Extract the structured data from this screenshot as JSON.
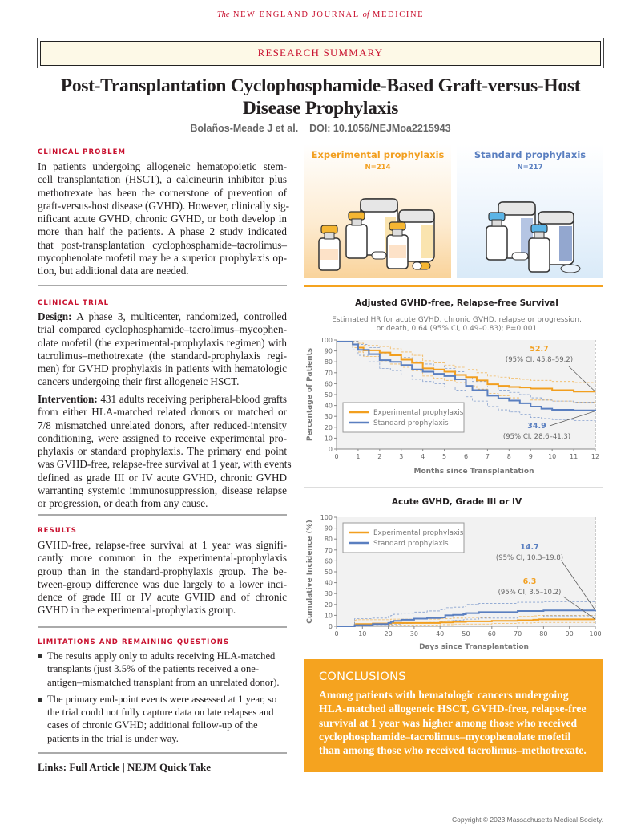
{
  "journal": {
    "prefix": "The",
    "name": "NEW ENGLAND JOURNAL",
    "of": "of",
    "suffix": "MEDICINE"
  },
  "banner": "RESEARCH SUMMARY",
  "title": "Post-Transplantation Cyclophosphamide-Based Graft-versus-Host Disease Prophylaxis",
  "authors": "Bolaños-Meade J et al.",
  "doi": "DOI: 10.1056/NEJMoa2215943",
  "sections": {
    "clinical_problem": {
      "heading": "CLINICAL PROBLEM",
      "lines": [
        "In patients undergoing allogeneic hematopoietic stem-",
        "cell transplantation (HSCT), a calcineurin inhibitor plus",
        "methotrexate has been the cornerstone of prevention of",
        "graft-versus-host disease (GVHD). However, clinically sig-",
        "nificant acute GVHD, chronic GVHD, or both develop in",
        "more than half the patients. A phase 2 study indicated",
        "that post-transplantation cyclophosphamide–tacrolimus–",
        "mycophenolate mofetil may be a superior prophylaxis op-",
        "tion, but additional data are needed."
      ]
    },
    "clinical_trial": {
      "heading": "CLINICAL TRIAL",
      "design_label": "Design:",
      "design_lines": [
        " A phase 3, multicenter, randomized, controlled",
        "trial compared cyclophosphamide–tacrolimus–mycophen-",
        "olate mofetil (the experimental-prophylaxis regimen) with",
        "tacrolimus–methotrexate (the standard-prophylaxis regi-",
        "men) for GVHD prophylaxis in patients with hematologic",
        "cancers undergoing their first allogeneic HSCT."
      ],
      "intervention_label": "Intervention:",
      "intervention_lines": [
        " 431 adults receiving peripheral-blood grafts",
        "from either HLA-matched related donors or matched or",
        "7/8 mismatched unrelated donors, after reduced-intensity",
        "conditioning, were assigned to receive experimental pro-",
        "phylaxis or standard prophylaxis. The primary end point",
        "was GVHD-free, relapse-free survival at 1 year, with events",
        "defined as grade III or IV acute GVHD, chronic GVHD",
        "warranting systemic immunosuppression, disease relapse",
        "or progression, or death from any cause."
      ]
    },
    "results": {
      "heading": "RESULTS",
      "lines": [
        "GVHD-free, relapse-free survival at 1 year was signifi-",
        "cantly more common in the experimental-prophylaxis",
        "group than in the standard-prophylaxis group. The be-",
        "tween-group difference was due largely to a lower inci-",
        "dence of grade III or IV acute GVHD and of chronic",
        "GVHD in the experimental-prophylaxis group."
      ]
    },
    "limitations": {
      "heading": "LIMITATIONS AND REMAINING QUESTIONS",
      "bullets": [
        "The results apply only to adults receiving HLA-matched transplants (just 3.5% of the patients received a one-antigen–mismatched transplant from an unrelated donor).",
        "The primary end-point events were assessed at 1 year, so the trial could not fully capture data on late relapses and cases of chronic GVHD; additional follow-up of the patients in the trial is under way."
      ]
    }
  },
  "links": {
    "label": "Links:",
    "full_article": "Full Article",
    "separator": "|",
    "quick_take": "NEJM Quick Take"
  },
  "arms": {
    "experimental": {
      "label": "Experimental prophylaxis",
      "n": "N=214",
      "color": "#f29f1f"
    },
    "standard": {
      "label": "Standard prophylaxis",
      "n": "N=217",
      "color": "#5a7fc0"
    }
  },
  "conclusions": {
    "heading": "CONCLUSIONS",
    "text": "Among patients with hematologic cancers undergoing HLA-matched allogeneic HSCT, GVHD-free, relapse-free survival at 1 year was higher among those who received cyclophosphamide–tacrolimus–mycophenolate mofetil than among those who received tacrolimus–methotrexate."
  },
  "copyright": "Copyright © 2023  Massachusetts Medical Society.",
  "chart_data": [
    {
      "type": "line",
      "title": "Adjusted GVHD-free, Relapse-free Survival",
      "subtitle": "Estimated HR for acute GVHD, chronic GVHD, relapse or progression, or death, 0.64 (95% CI, 0.49–0.83); P=0.001",
      "xlabel": "Months since Transplantation",
      "ylabel": "Percentage of Patients",
      "xlim": [
        0,
        12
      ],
      "ylim": [
        0,
        100
      ],
      "xticks": [
        0,
        1,
        2,
        3,
        4,
        5,
        6,
        7,
        8,
        9,
        10,
        11,
        12
      ],
      "yticks": [
        0,
        10,
        20,
        30,
        40,
        50,
        60,
        70,
        80,
        90,
        100
      ],
      "legend": "bottom-left",
      "series": [
        {
          "name": "Experimental prophylaxis",
          "color": "#f29f1f",
          "x": [
            0,
            0.5,
            0.75,
            1,
            1.25,
            2,
            2.5,
            3,
            3.5,
            4,
            4.5,
            5,
            5.5,
            6,
            6.5,
            7,
            7.5,
            8,
            8.5,
            9,
            10,
            11,
            12
          ],
          "y": [
            98.5,
            98.5,
            96,
            93,
            90.5,
            88.5,
            86,
            82,
            79,
            74,
            73,
            71,
            68,
            66,
            63,
            59.5,
            58,
            57,
            56.5,
            55.5,
            54,
            52.8,
            52.7
          ],
          "ci_lower_y": [
            98.5,
            98.5,
            93,
            89,
            85,
            80,
            78,
            75,
            72,
            67,
            65,
            63,
            61,
            58,
            55,
            51,
            49,
            47,
            46,
            45,
            44,
            43,
            42.5
          ],
          "ci_upper_y": [
            98.5,
            98.5,
            99,
            97,
            95,
            94,
            92,
            89,
            86,
            81,
            79,
            77,
            75,
            73,
            70,
            67,
            66,
            65,
            64,
            63,
            62,
            61,
            60
          ]
        },
        {
          "name": "Standard prophylaxis",
          "color": "#5a7fc0",
          "x": [
            0,
            0.5,
            0.75,
            1,
            1.5,
            2,
            2.5,
            3,
            3.5,
            4,
            4.5,
            5,
            5.5,
            6,
            6.3,
            7,
            7.5,
            8,
            8.5,
            9,
            9.5,
            10,
            11,
            12
          ],
          "y": [
            98.5,
            98.5,
            96,
            91,
            87,
            81.5,
            80,
            77,
            73,
            71,
            69,
            67,
            64,
            58,
            54,
            49,
            46.5,
            44.5,
            42,
            39,
            37,
            36,
            35.5,
            34.9
          ],
          "ci_lower_y": [
            98.5,
            98.5,
            91,
            86,
            80,
            74,
            72,
            68,
            64,
            62,
            60,
            57,
            54,
            48,
            44,
            39,
            36,
            34,
            32,
            29,
            28,
            27,
            26,
            25
          ],
          "ci_upper_y": [
            98.5,
            98.5,
            99,
            96,
            93,
            88,
            86,
            84,
            80,
            78,
            76,
            74,
            71,
            66,
            62,
            57,
            54,
            52,
            50,
            47,
            45,
            44,
            43,
            43
          ]
        }
      ],
      "annotations": [
        {
          "series": "Experimental prophylaxis",
          "value": "52.7",
          "ci": "(95% CI, 45.8–59.2)"
        },
        {
          "series": "Standard prophylaxis",
          "value": "34.9",
          "ci": "(95% CI, 28.6–41.3)"
        }
      ]
    },
    {
      "type": "line",
      "title": "Acute GVHD, Grade III or IV",
      "xlabel": "Days since Transplantation",
      "ylabel": "Cumulative Incidence (%)",
      "xlim": [
        0,
        100
      ],
      "ylim": [
        0,
        100
      ],
      "xticks": [
        0,
        10,
        20,
        30,
        40,
        50,
        60,
        70,
        80,
        90,
        100
      ],
      "yticks": [
        0,
        10,
        20,
        30,
        40,
        50,
        60,
        70,
        80,
        90,
        100
      ],
      "legend": "top-left",
      "series": [
        {
          "name": "Experimental prophylaxis",
          "color": "#f29f1f",
          "x": [
            0,
            7,
            7.5,
            14,
            20,
            21,
            40,
            45,
            50,
            60,
            70,
            76,
            78,
            100
          ],
          "y": [
            0,
            1,
            2,
            2.5,
            2.5,
            3,
            3.5,
            4,
            4.5,
            5,
            5.5,
            6,
            6.3,
            6.3
          ],
          "ci_lower_y": [
            0,
            0,
            0.5,
            0.5,
            1,
            1,
            1.5,
            2,
            2,
            2.5,
            3,
            3.3,
            3.5,
            3.5
          ],
          "ci_upper_y": [
            0,
            5.5,
            6,
            6,
            6,
            6.5,
            7,
            7.5,
            8,
            8.5,
            9,
            9.5,
            10,
            10.2
          ]
        },
        {
          "name": "Standard prophylaxis",
          "color": "#5a7fc0",
          "x": [
            0,
            6,
            7,
            14,
            20,
            21,
            22,
            25,
            30,
            35,
            40,
            42,
            45,
            49,
            50,
            55,
            70,
            80,
            100
          ],
          "y": [
            0,
            0,
            1,
            2,
            3,
            4,
            5,
            6,
            7,
            7.5,
            8,
            10,
            10.5,
            11,
            12,
            13,
            14,
            14.5,
            14.7
          ],
          "ci_lower_y": [
            0,
            0,
            0,
            0.5,
            1,
            1.5,
            2,
            2.5,
            3,
            3.5,
            4,
            5,
            5.5,
            6,
            6.5,
            7.5,
            8.5,
            9.5,
            10.3
          ],
          "ci_upper_y": [
            0,
            0,
            7,
            7.5,
            9,
            10,
            11,
            12,
            13,
            14,
            15,
            17,
            17.5,
            18,
            20,
            21,
            22,
            22.5,
            23
          ]
        }
      ],
      "annotations": [
        {
          "series": "Standard prophylaxis",
          "value": "14.7",
          "ci": "(95% CI, 10.3–19.8)"
        },
        {
          "series": "Experimental prophylaxis",
          "value": "6.3",
          "ci": "(95% CI, 3.5–10.2)"
        }
      ]
    }
  ]
}
